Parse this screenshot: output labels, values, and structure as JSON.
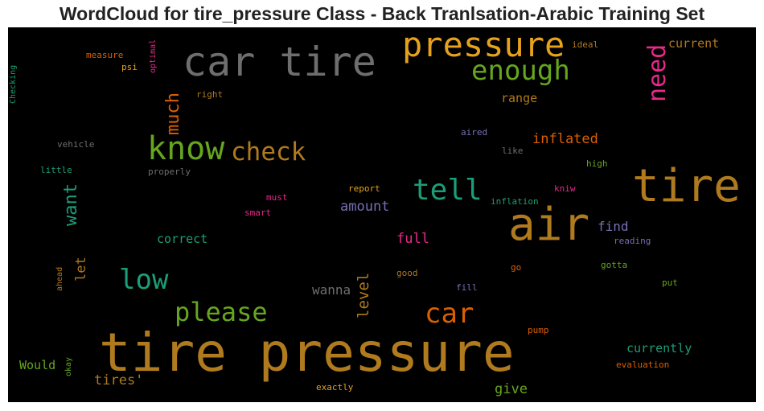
{
  "title": "WordCloud for tire_pressure Class - Back Tranlsation-Arabic Training Set",
  "words": [
    {
      "id": "tire-pressure",
      "text": "tire pressure",
      "color": "#b07a1e"
    },
    {
      "id": "car-tire",
      "text": "car tire",
      "color": "#6e6e6e"
    },
    {
      "id": "pressure",
      "text": "pressure",
      "color": "#e6a21c"
    },
    {
      "id": "tire",
      "text": "tire",
      "color": "#b07a1e"
    },
    {
      "id": "air",
      "text": "air",
      "color": "#b07a1e"
    },
    {
      "id": "know",
      "text": "know",
      "color": "#66a61e"
    },
    {
      "id": "check",
      "text": "check",
      "color": "#b07a1e"
    },
    {
      "id": "enough",
      "text": "enough",
      "color": "#66a61e"
    },
    {
      "id": "need",
      "text": "need",
      "color": "#e7298a"
    },
    {
      "id": "tell",
      "text": "tell",
      "color": "#1b9e77"
    },
    {
      "id": "low",
      "text": "low",
      "color": "#1b9e77"
    },
    {
      "id": "please",
      "text": "please",
      "color": "#66a61e"
    },
    {
      "id": "car",
      "text": "car",
      "color": "#d95f02"
    },
    {
      "id": "much",
      "text": "much",
      "color": "#d95f02"
    },
    {
      "id": "want",
      "text": "want",
      "color": "#1b9e77"
    },
    {
      "id": "current",
      "text": "current",
      "color": "#b07a1e"
    },
    {
      "id": "range",
      "text": "range",
      "color": "#b07a1e"
    },
    {
      "id": "inflated",
      "text": "inflated",
      "color": "#d95f02"
    },
    {
      "id": "amount",
      "text": "amount",
      "color": "#7570b3"
    },
    {
      "id": "correct",
      "text": "correct",
      "color": "#1b9e77"
    },
    {
      "id": "full",
      "text": "full",
      "color": "#e7298a"
    },
    {
      "id": "find",
      "text": "find",
      "color": "#7570b3"
    },
    {
      "id": "let",
      "text": "let",
      "color": "#b07a1e"
    },
    {
      "id": "level",
      "text": "level",
      "color": "#b07a1e"
    },
    {
      "id": "wanna",
      "text": "wanna",
      "color": "#6e6e6e"
    },
    {
      "id": "currently",
      "text": "currently",
      "color": "#1b9e77"
    },
    {
      "id": "would",
      "text": "Would",
      "color": "#66a61e"
    },
    {
      "id": "tires",
      "text": "tires'",
      "color": "#b07a1e"
    },
    {
      "id": "give",
      "text": "give",
      "color": "#66a61e"
    },
    {
      "id": "measure",
      "text": "measure",
      "color": "#d95f02"
    },
    {
      "id": "psi",
      "text": "psi",
      "color": "#e6a21c"
    },
    {
      "id": "optimal",
      "text": "optimal",
      "color": "#e7298a"
    },
    {
      "id": "ideal",
      "text": "ideal",
      "color": "#b07a1e"
    },
    {
      "id": "right",
      "text": "right",
      "color": "#b07a1e"
    },
    {
      "id": "checking",
      "text": "Checking",
      "color": "#1b9e77"
    },
    {
      "id": "vehicle",
      "text": "vehicle",
      "color": "#6e6e6e"
    },
    {
      "id": "little",
      "text": "little",
      "color": "#1b9e77"
    },
    {
      "id": "properly",
      "text": "properly",
      "color": "#6e6e6e"
    },
    {
      "id": "aired",
      "text": "aired",
      "color": "#7570b3"
    },
    {
      "id": "like",
      "text": "like",
      "color": "#6e6e6e"
    },
    {
      "id": "high",
      "text": "high",
      "color": "#66a61e"
    },
    {
      "id": "report",
      "text": "report",
      "color": "#e6a21c"
    },
    {
      "id": "kniw",
      "text": "kniw",
      "color": "#e7298a"
    },
    {
      "id": "inflation",
      "text": "inflation",
      "color": "#1b9e77"
    },
    {
      "id": "must",
      "text": "must",
      "color": "#e7298a"
    },
    {
      "id": "smart",
      "text": "smart",
      "color": "#e7298a"
    },
    {
      "id": "reading",
      "text": "reading",
      "color": "#7570b3"
    },
    {
      "id": "go",
      "text": "go",
      "color": "#d95f02"
    },
    {
      "id": "gotta",
      "text": "gotta",
      "color": "#66a61e"
    },
    {
      "id": "ahead",
      "text": "ahead",
      "color": "#b07a1e"
    },
    {
      "id": "good",
      "text": "good",
      "color": "#b07a1e"
    },
    {
      "id": "put",
      "text": "put",
      "color": "#66a61e"
    },
    {
      "id": "fill",
      "text": "fill",
      "color": "#7570b3"
    },
    {
      "id": "pump",
      "text": "pump",
      "color": "#d95f02"
    },
    {
      "id": "okay",
      "text": "okay",
      "color": "#66a61e"
    },
    {
      "id": "evaluation",
      "text": "evaluation",
      "color": "#d95f02"
    },
    {
      "id": "exactly",
      "text": "exactly",
      "color": "#e6a21c"
    }
  ]
}
